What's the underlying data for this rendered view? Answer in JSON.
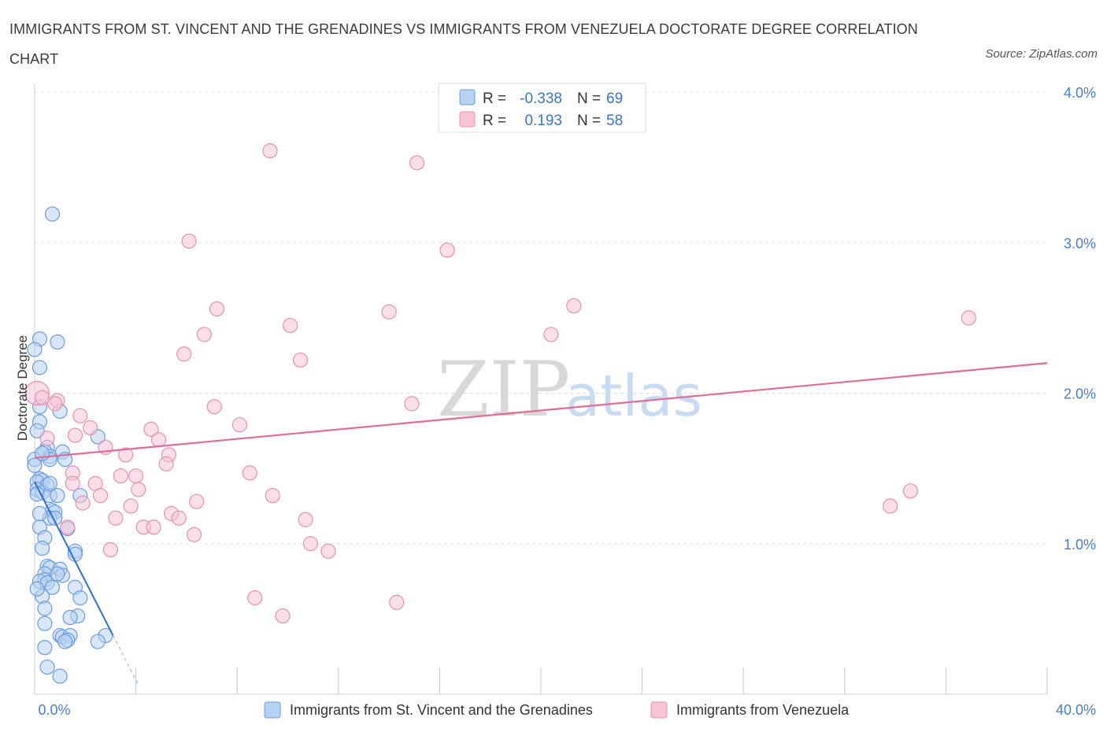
{
  "title": "IMMIGRANTS FROM ST. VINCENT AND THE GRENADINES VS IMMIGRANTS FROM VENEZUELA DOCTORATE DEGREE CORRELATION CHART",
  "source": "Source: ZipAtlas.com",
  "watermark": {
    "zip": "ZIP",
    "atlas": "atlas"
  },
  "colors": {
    "blue_fill": "#b8d2f3",
    "blue_stroke": "#6b9be0",
    "blue_line": "#2f6fcf",
    "pink_fill": "#f7c4d6",
    "pink_stroke": "#e88fb0",
    "pink_line": "#e26b98",
    "grid": "#e2e2e2",
    "tick_text": "#4a7cc7"
  },
  "legend": {
    "rows": [
      {
        "r_label": "R =",
        "r_value": "-0.338",
        "n_label": "N =",
        "n_value": "69"
      },
      {
        "r_label": "R =",
        "r_value": "0.193",
        "n_label": "N =",
        "n_value": "58"
      }
    ]
  },
  "chart_data": {
    "type": "scatter",
    "title": "IMMIGRANTS FROM ST. VINCENT AND THE GRENADINES VS IMMIGRANTS FROM VENEZUELA DOCTORATE DEGREE CORRELATION CHART",
    "xlabel": "",
    "ylabel": "Doctorate Degree",
    "xlim": [
      0,
      40
    ],
    "ylim": [
      0,
      4.0
    ],
    "x_tick_labels": [
      "0.0%",
      "40.0%"
    ],
    "y_ticks": [
      1,
      2,
      3,
      4
    ],
    "y_tick_labels": [
      "1.0%",
      "2.0%",
      "3.0%",
      "4.0%"
    ],
    "grid": true,
    "legend_position": "top-center",
    "series": [
      {
        "name": "Immigrants from St. Vincent and the Grenadines",
        "color": "blue",
        "r": -0.338,
        "n": 69,
        "trend": {
          "x0": 0.0,
          "y0": 1.41,
          "x1": 3.1,
          "y1": 0.39,
          "dash_to_x": 4.1
        },
        "points": [
          [
            0.7,
            3.19
          ],
          [
            0.2,
            2.36
          ],
          [
            0.9,
            2.34
          ],
          [
            0.0,
            2.29
          ],
          [
            0.2,
            2.17
          ],
          [
            0.2,
            1.91
          ],
          [
            1.0,
            1.88
          ],
          [
            0.2,
            1.81
          ],
          [
            0.1,
            1.75
          ],
          [
            2.5,
            1.71
          ],
          [
            0.5,
            1.64
          ],
          [
            0.4,
            1.61
          ],
          [
            1.1,
            1.61
          ],
          [
            0.6,
            1.58
          ],
          [
            0.0,
            1.56
          ],
          [
            0.6,
            1.56
          ],
          [
            1.2,
            1.56
          ],
          [
            0.0,
            1.52
          ],
          [
            0.2,
            1.43
          ],
          [
            0.3,
            1.42
          ],
          [
            0.1,
            1.41
          ],
          [
            0.5,
            1.39
          ],
          [
            0.1,
            1.36
          ],
          [
            0.3,
            1.34
          ],
          [
            0.1,
            1.33
          ],
          [
            0.6,
            1.32
          ],
          [
            0.9,
            1.32
          ],
          [
            1.8,
            1.32
          ],
          [
            0.7,
            1.22
          ],
          [
            0.8,
            1.21
          ],
          [
            0.6,
            1.17
          ],
          [
            0.2,
            1.11
          ],
          [
            1.3,
            1.1
          ],
          [
            0.4,
            1.04
          ],
          [
            1.6,
            0.95
          ],
          [
            1.6,
            0.93
          ],
          [
            0.5,
            0.85
          ],
          [
            0.6,
            0.84
          ],
          [
            1.0,
            0.83
          ],
          [
            0.4,
            0.8
          ],
          [
            1.1,
            0.79
          ],
          [
            0.4,
            0.76
          ],
          [
            0.2,
            0.75
          ],
          [
            0.5,
            0.74
          ],
          [
            0.7,
            0.71
          ],
          [
            1.6,
            0.71
          ],
          [
            0.3,
            0.65
          ],
          [
            1.8,
            0.64
          ],
          [
            0.4,
            0.57
          ],
          [
            1.7,
            0.52
          ],
          [
            1.4,
            0.51
          ],
          [
            0.4,
            0.47
          ],
          [
            1.0,
            0.39
          ],
          [
            1.1,
            0.38
          ],
          [
            1.4,
            0.39
          ],
          [
            2.8,
            0.39
          ],
          [
            1.3,
            0.36
          ],
          [
            2.5,
            0.35
          ],
          [
            0.4,
            0.31
          ],
          [
            0.5,
            0.18
          ],
          [
            1.0,
            0.12
          ],
          [
            0.2,
            1.2
          ],
          [
            0.8,
            1.17
          ],
          [
            0.3,
            0.97
          ],
          [
            1.2,
            0.35
          ],
          [
            0.9,
            0.8
          ],
          [
            0.3,
            1.6
          ],
          [
            0.6,
            1.4
          ],
          [
            0.1,
            0.7
          ]
        ]
      },
      {
        "name": "Immigrants from Venezuela",
        "color": "pink",
        "r": 0.193,
        "n": 58,
        "trend": {
          "x0": 0.0,
          "y0": 1.57,
          "x1": 40.0,
          "y1": 2.2
        },
        "points": [
          [
            9.3,
            3.61
          ],
          [
            15.1,
            3.53
          ],
          [
            6.1,
            3.01
          ],
          [
            16.3,
            2.95
          ],
          [
            21.3,
            2.58
          ],
          [
            7.2,
            2.56
          ],
          [
            14.0,
            2.54
          ],
          [
            10.1,
            2.45
          ],
          [
            36.9,
            2.5
          ],
          [
            6.7,
            2.39
          ],
          [
            20.4,
            2.39
          ],
          [
            5.9,
            2.26
          ],
          [
            10.5,
            2.22
          ],
          [
            0.1,
            2.0
          ],
          [
            0.3,
            1.97
          ],
          [
            0.9,
            1.95
          ],
          [
            0.8,
            1.93
          ],
          [
            7.1,
            1.91
          ],
          [
            14.9,
            1.93
          ],
          [
            1.8,
            1.85
          ],
          [
            8.1,
            1.79
          ],
          [
            2.2,
            1.77
          ],
          [
            4.6,
            1.76
          ],
          [
            0.5,
            1.7
          ],
          [
            1.6,
            1.72
          ],
          [
            4.9,
            1.69
          ],
          [
            2.8,
            1.64
          ],
          [
            5.3,
            1.59
          ],
          [
            3.6,
            1.59
          ],
          [
            5.2,
            1.53
          ],
          [
            1.5,
            1.47
          ],
          [
            8.5,
            1.47
          ],
          [
            3.4,
            1.45
          ],
          [
            4.0,
            1.45
          ],
          [
            1.5,
            1.4
          ],
          [
            2.4,
            1.4
          ],
          [
            4.1,
            1.36
          ],
          [
            34.6,
            1.35
          ],
          [
            2.6,
            1.32
          ],
          [
            9.4,
            1.32
          ],
          [
            1.9,
            1.27
          ],
          [
            6.4,
            1.28
          ],
          [
            3.8,
            1.25
          ],
          [
            33.8,
            1.25
          ],
          [
            5.4,
            1.2
          ],
          [
            3.2,
            1.17
          ],
          [
            5.7,
            1.17
          ],
          [
            10.7,
            1.16
          ],
          [
            4.3,
            1.11
          ],
          [
            4.7,
            1.11
          ],
          [
            1.3,
            1.11
          ],
          [
            6.3,
            1.06
          ],
          [
            10.9,
            1.0
          ],
          [
            11.6,
            0.95
          ],
          [
            3.0,
            0.96
          ],
          [
            8.7,
            0.64
          ],
          [
            14.3,
            0.61
          ],
          [
            9.8,
            0.52
          ]
        ]
      }
    ]
  }
}
